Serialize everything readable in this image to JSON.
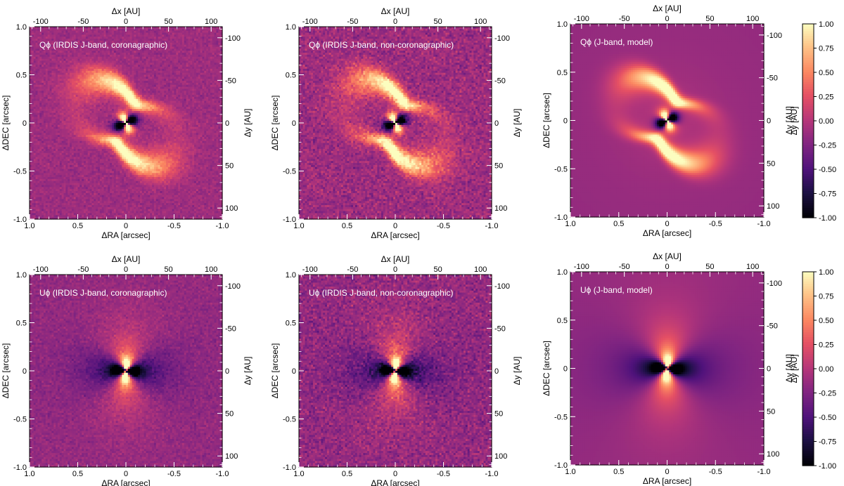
{
  "figure_title": "",
  "chart_data": {
    "type": "heatmap",
    "colormap": "magma",
    "colorbar": {
      "range": [
        -1.0,
        1.0
      ],
      "ticks": [
        "1.00",
        "0.75",
        "0.50",
        "0.25",
        "0.00",
        "-0.25",
        "-0.50",
        "-0.75",
        "-1.00"
      ],
      "label": "Δy [AU]"
    },
    "axes": {
      "xlabel_bottom": "ΔRA [arcsec]",
      "ylabel_left": "ΔDEC [arcsec]",
      "xlabel_top": "Δx [AU]",
      "ylabel_right": "Δy [AU]",
      "arcsec_ticks_x": [
        "1.0",
        "0.5",
        "0",
        "-0.5",
        "-1.0"
      ],
      "arcsec_ticks_y": [
        "1.0",
        "0.5",
        "0",
        "-0.5",
        "-1.0"
      ],
      "au_ticks_top": [
        "-100",
        "-50",
        "0",
        "50",
        "100"
      ],
      "au_ticks_right": [
        "100",
        "50",
        "0",
        "-50",
        "-100"
      ],
      "arcsec_range": [
        1.0,
        -1.0
      ],
      "au_range": [
        -113,
        113
      ]
    },
    "panels": [
      {
        "title": "Qϕ (IRDIS J-band, coronagraphic)",
        "kind": "Q",
        "noise": 0.55
      },
      {
        "title": "Qϕ (IRDIS J-band, non-coronagraphic)",
        "kind": "Q",
        "noise": 1.0
      },
      {
        "title": "Qϕ (J-band, model)",
        "kind": "Q",
        "noise": 0.0
      },
      {
        "title": "Uϕ (IRDIS J-band, coronagraphic)",
        "kind": "U",
        "noise": 0.55
      },
      {
        "title": "Uϕ (IRDIS J-band, non-coronagraphic)",
        "kind": "U",
        "noise": 1.0
      },
      {
        "title": "Uϕ (J-band, model)",
        "kind": "U",
        "noise": 0.0
      }
    ]
  }
}
